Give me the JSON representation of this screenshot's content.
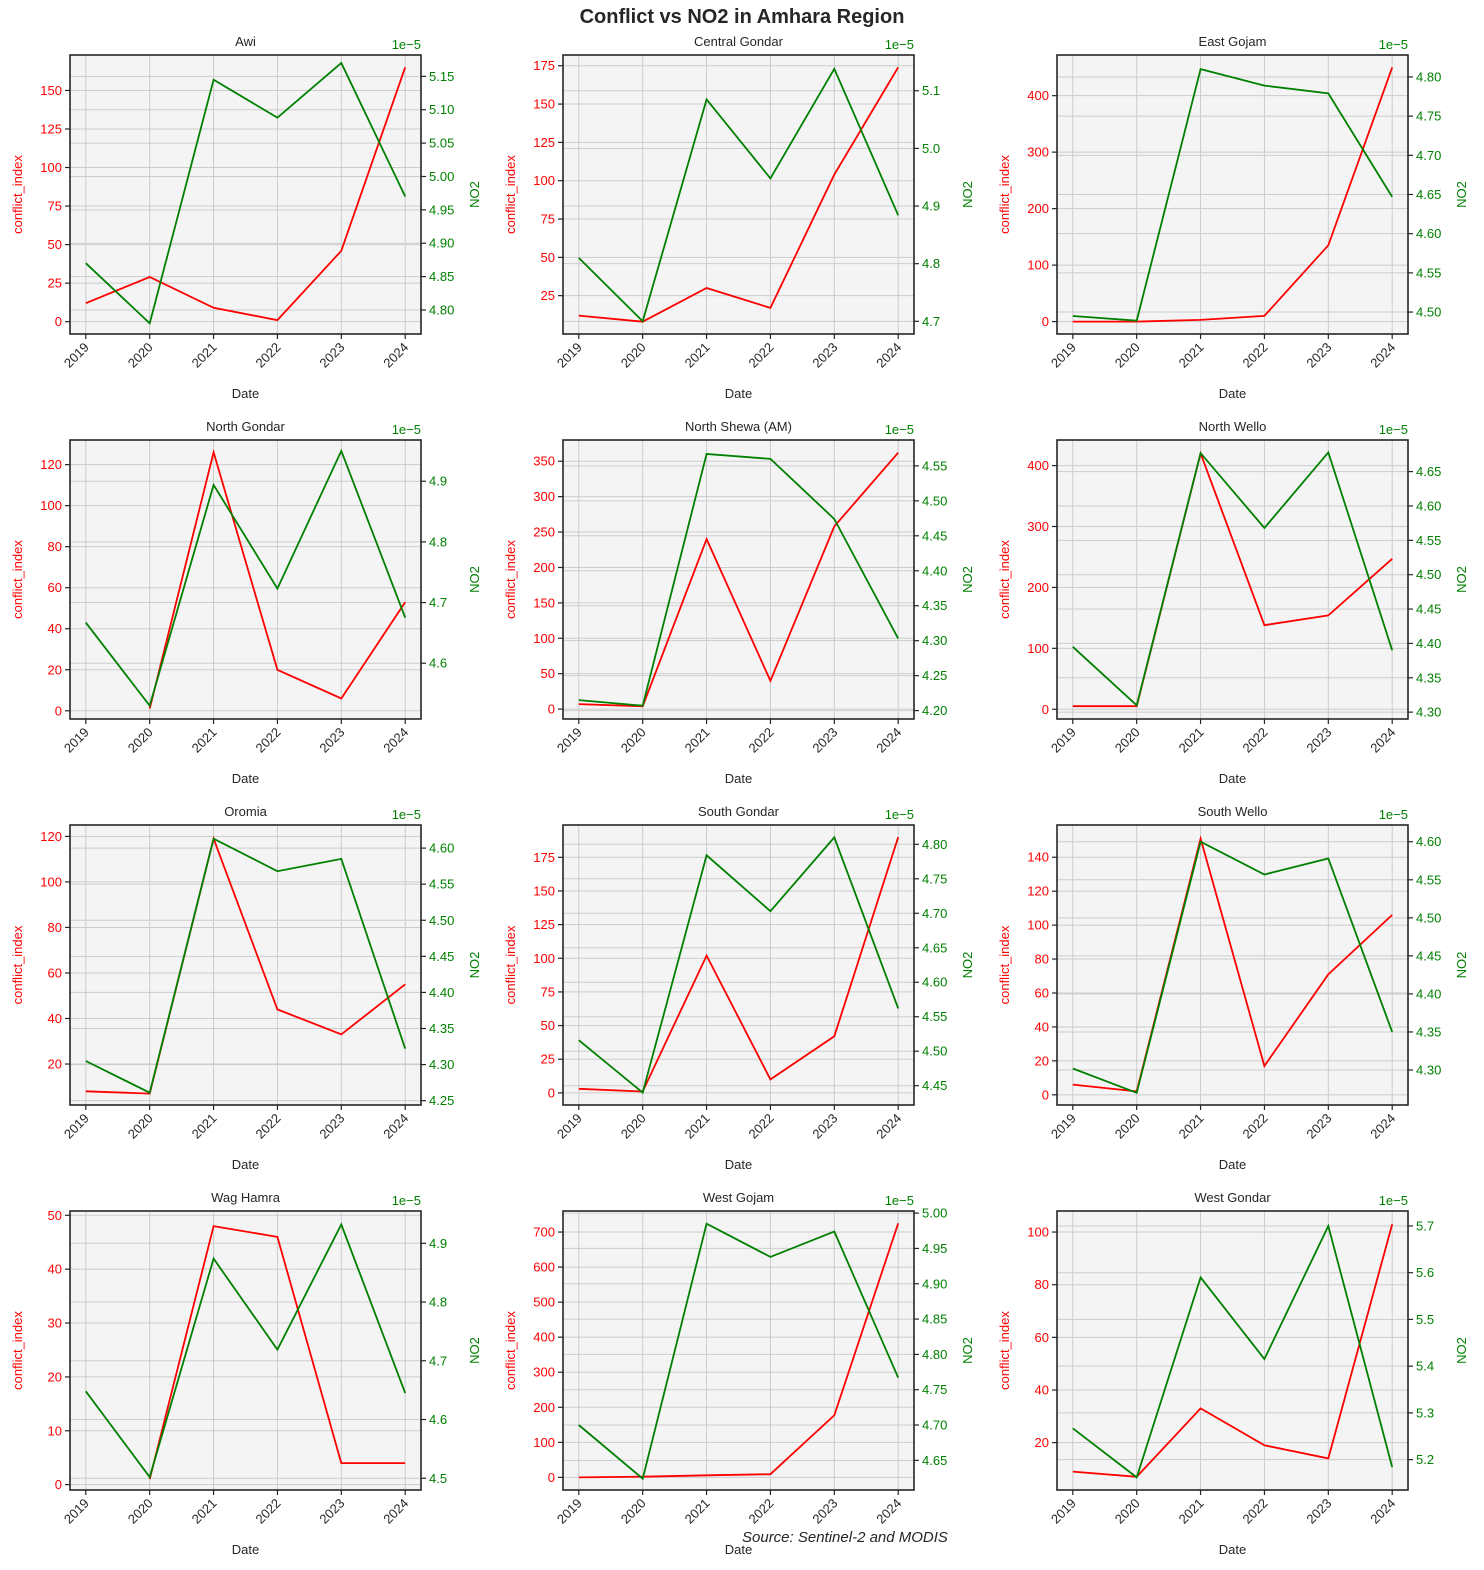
{
  "figure": {
    "title": "Conflict vs NO2 in Amhara Region",
    "source": "Source: Sentinel-2 and MODIS",
    "colors": {
      "conflict": "#ff0000",
      "no2": "#008000",
      "axes_bg": "#f4f4f4",
      "grid": "#cccccc",
      "spine": "#262626",
      "text": "#262626"
    }
  },
  "chart_data": [
    {
      "type": "line",
      "title": "Awi",
      "xlabel": "Date",
      "ylabel": "conflict_index",
      "y2label": "NO2",
      "y2_offset": "1e−5",
      "categories": [
        "2019",
        "2020",
        "2021",
        "2022",
        "2023",
        "2024"
      ],
      "ylim": [
        -8,
        173
      ],
      "yticks": [
        0,
        25,
        50,
        75,
        100,
        125,
        150
      ],
      "y2lim": [
        4.764,
        5.182
      ],
      "y2ticks": [
        4.8,
        4.85,
        4.9,
        4.95,
        5.0,
        5.05,
        5.1,
        5.15
      ],
      "y2dec": 2,
      "series": [
        {
          "name": "conflict_index",
          "axis": "left",
          "values": [
            12,
            29,
            9,
            1,
            46,
            165
          ]
        },
        {
          "name": "NO2",
          "axis": "right",
          "scale": "1e-5",
          "values": [
            4.87,
            4.78,
            5.145,
            5.088,
            5.17,
            4.97
          ]
        }
      ]
    },
    {
      "type": "line",
      "title": "Central Gondar",
      "xlabel": "Date",
      "ylabel": "conflict_index",
      "y2label": "NO2",
      "y2_offset": "1e−5",
      "categories": [
        "2019",
        "2020",
        "2021",
        "2022",
        "2023",
        "2024"
      ],
      "ylim": [
        0,
        182
      ],
      "yticks": [
        25,
        50,
        75,
        100,
        125,
        150,
        175
      ],
      "y2lim": [
        4.678,
        5.162
      ],
      "y2ticks": [
        4.7,
        4.8,
        4.9,
        5.0,
        5.1
      ],
      "y2dec": 1,
      "series": [
        {
          "name": "conflict_index",
          "axis": "left",
          "values": [
            12,
            8,
            30,
            17,
            104,
            174
          ]
        },
        {
          "name": "NO2",
          "axis": "right",
          "scale": "1e-5",
          "values": [
            4.81,
            4.7,
            5.085,
            4.948,
            5.138,
            4.884
          ]
        }
      ]
    },
    {
      "type": "line",
      "title": "East Gojam",
      "xlabel": "Date",
      "ylabel": "conflict_index",
      "y2label": "NO2",
      "y2_offset": "1e−5",
      "categories": [
        "2019",
        "2020",
        "2021",
        "2022",
        "2023",
        "2024"
      ],
      "ylim": [
        -22,
        472
      ],
      "yticks": [
        0,
        100,
        200,
        300,
        400
      ],
      "y2lim": [
        4.472,
        4.828
      ],
      "y2ticks": [
        4.5,
        4.55,
        4.6,
        4.65,
        4.7,
        4.75,
        4.8
      ],
      "y2dec": 2,
      "series": [
        {
          "name": "conflict_index",
          "axis": "left",
          "values": [
            0,
            0,
            3,
            10,
            135,
            450
          ]
        },
        {
          "name": "NO2",
          "axis": "right",
          "scale": "1e-5",
          "values": [
            4.495,
            4.489,
            4.81,
            4.789,
            4.779,
            4.647
          ]
        }
      ]
    },
    {
      "type": "line",
      "title": "North Gondar",
      "xlabel": "Date",
      "ylabel": "conflict_index",
      "y2label": "NO2",
      "y2_offset": "1e−5",
      "categories": [
        "2019",
        "2020",
        "2021",
        "2022",
        "2023",
        "2024"
      ],
      "ylim": [
        -4,
        132
      ],
      "yticks": [
        0,
        20,
        40,
        60,
        80,
        100,
        120
      ],
      "y2lim": [
        4.508,
        4.968
      ],
      "y2ticks": [
        4.6,
        4.7,
        4.8,
        4.9
      ],
      "y2dec": 1,
      "series": [
        {
          "name": "conflict_index",
          "axis": "left",
          "values": [
            null,
            1,
            126,
            20,
            6,
            53
          ]
        },
        {
          "name": "NO2",
          "axis": "right",
          "scale": "1e-5",
          "values": [
            4.667,
            4.53,
            4.894,
            4.723,
            4.95,
            4.675
          ]
        }
      ]
    },
    {
      "type": "line",
      "title": "North Shewa (AM)",
      "xlabel": "Date",
      "ylabel": "conflict_index",
      "y2label": "NO2",
      "y2_offset": "1e−5",
      "categories": [
        "2019",
        "2020",
        "2021",
        "2022",
        "2023",
        "2024"
      ],
      "ylim": [
        -14,
        380
      ],
      "yticks": [
        0,
        50,
        100,
        150,
        200,
        250,
        300,
        350
      ],
      "y2lim": [
        4.188,
        4.587
      ],
      "y2ticks": [
        4.2,
        4.25,
        4.3,
        4.35,
        4.4,
        4.45,
        4.5,
        4.55
      ],
      "y2dec": 2,
      "series": [
        {
          "name": "conflict_index",
          "axis": "left",
          "values": [
            7,
            4,
            240,
            40,
            258,
            362
          ]
        },
        {
          "name": "NO2",
          "axis": "right",
          "scale": "1e-5",
          "values": [
            4.215,
            4.207,
            4.567,
            4.56,
            4.474,
            4.303
          ]
        }
      ]
    },
    {
      "type": "line",
      "title": "North Wello",
      "xlabel": "Date",
      "ylabel": "conflict_index",
      "y2label": "NO2",
      "y2_offset": "1e−5",
      "categories": [
        "2019",
        "2020",
        "2021",
        "2022",
        "2023",
        "2024"
      ],
      "ylim": [
        -16,
        442
      ],
      "yticks": [
        0,
        100,
        200,
        300,
        400
      ],
      "y2lim": [
        4.29,
        4.696
      ],
      "y2ticks": [
        4.3,
        4.35,
        4.4,
        4.45,
        4.5,
        4.55,
        4.6,
        4.65
      ],
      "y2dec": 2,
      "series": [
        {
          "name": "conflict_index",
          "axis": "left",
          "values": [
            5,
            5,
            420,
            138,
            154,
            247
          ]
        },
        {
          "name": "NO2",
          "axis": "right",
          "scale": "1e-5",
          "values": [
            4.395,
            4.31,
            4.677,
            4.568,
            4.678,
            4.39
          ]
        }
      ]
    },
    {
      "type": "line",
      "title": "Oromia",
      "xlabel": "Date",
      "ylabel": "conflict_index",
      "y2label": "NO2",
      "y2_offset": "1e−5",
      "categories": [
        "2019",
        "2020",
        "2021",
        "2022",
        "2023",
        "2024"
      ],
      "ylim": [
        2,
        125
      ],
      "yticks": [
        20,
        40,
        60,
        80,
        100,
        120
      ],
      "y2lim": [
        4.244,
        4.632
      ],
      "y2ticks": [
        4.25,
        4.3,
        4.35,
        4.4,
        4.45,
        4.5,
        4.55,
        4.6
      ],
      "y2dec": 2,
      "series": [
        {
          "name": "conflict_index",
          "axis": "left",
          "values": [
            8,
            7,
            119,
            44,
            33,
            55
          ]
        },
        {
          "name": "NO2",
          "axis": "right",
          "scale": "1e-5",
          "values": [
            4.305,
            4.261,
            4.613,
            4.568,
            4.585,
            4.322
          ]
        }
      ]
    },
    {
      "type": "line",
      "title": "South Gondar",
      "xlabel": "Date",
      "ylabel": "conflict_index",
      "y2label": "NO2",
      "y2_offset": "1e−5",
      "categories": [
        "2019",
        "2020",
        "2021",
        "2022",
        "2023",
        "2024"
      ],
      "ylim": [
        -9,
        199
      ],
      "yticks": [
        0,
        25,
        50,
        75,
        100,
        125,
        150,
        175
      ],
      "y2lim": [
        4.422,
        4.828
      ],
      "y2ticks": [
        4.45,
        4.5,
        4.55,
        4.6,
        4.65,
        4.7,
        4.75,
        4.8
      ],
      "y2dec": 2,
      "series": [
        {
          "name": "conflict_index",
          "axis": "left",
          "values": [
            3,
            1,
            102,
            10,
            42,
            190
          ]
        },
        {
          "name": "NO2",
          "axis": "right",
          "scale": "1e-5",
          "values": [
            4.516,
            4.44,
            4.784,
            4.703,
            4.81,
            4.562
          ]
        }
      ]
    },
    {
      "type": "line",
      "title": "South Wello",
      "xlabel": "Date",
      "ylabel": "conflict_index",
      "y2label": "NO2",
      "y2_offset": "1e−5",
      "categories": [
        "2019",
        "2020",
        "2021",
        "2022",
        "2023",
        "2024"
      ],
      "ylim": [
        -6,
        159
      ],
      "yticks": [
        0,
        20,
        40,
        60,
        80,
        100,
        120,
        140
      ],
      "y2lim": [
        4.254,
        4.622
      ],
      "y2ticks": [
        4.3,
        4.35,
        4.4,
        4.45,
        4.5,
        4.55,
        4.6
      ],
      "y2dec": 2,
      "series": [
        {
          "name": "conflict_index",
          "axis": "left",
          "values": [
            6,
            2,
            151,
            17,
            71,
            106
          ]
        },
        {
          "name": "NO2",
          "axis": "right",
          "scale": "1e-5",
          "values": [
            4.302,
            4.27,
            4.6,
            4.557,
            4.578,
            4.35
          ]
        }
      ]
    },
    {
      "type": "line",
      "title": "Wag Hamra",
      "xlabel": "Date",
      "ylabel": "conflict_index",
      "y2label": "NO2",
      "y2_offset": "1e−5",
      "categories": [
        "2019",
        "2020",
        "2021",
        "2022",
        "2023",
        "2024"
      ],
      "ylim": [
        -1,
        50.8
      ],
      "yticks": [
        0,
        10,
        20,
        30,
        40,
        50
      ],
      "y2lim": [
        4.48,
        4.955
      ],
      "y2ticks": [
        4.5,
        4.6,
        4.7,
        4.8,
        4.9
      ],
      "y2dec": 1,
      "series": [
        {
          "name": "conflict_index",
          "axis": "left",
          "values": [
            null,
            1,
            48,
            46,
            4,
            4
          ]
        },
        {
          "name": "NO2",
          "axis": "right",
          "scale": "1e-5",
          "values": [
            4.648,
            4.502,
            4.874,
            4.719,
            4.932,
            4.645
          ]
        }
      ]
    },
    {
      "type": "line",
      "title": "West Gojam",
      "xlabel": "Date",
      "ylabel": "conflict_index",
      "y2label": "NO2",
      "y2_offset": "1e−5",
      "categories": [
        "2019",
        "2020",
        "2021",
        "2022",
        "2023",
        "2024"
      ],
      "ylim": [
        -36,
        760
      ],
      "yticks": [
        0,
        100,
        200,
        300,
        400,
        500,
        600,
        700
      ],
      "y2lim": [
        4.608,
        5.003
      ],
      "y2ticks": [
        4.65,
        4.7,
        4.75,
        4.8,
        4.85,
        4.9,
        4.95,
        5.0
      ],
      "y2dec": 2,
      "series": [
        {
          "name": "conflict_index",
          "axis": "left",
          "values": [
            0,
            2,
            6,
            9,
            177,
            725
          ]
        },
        {
          "name": "NO2",
          "axis": "right",
          "scale": "1e-5",
          "values": [
            4.7,
            4.624,
            4.985,
            4.938,
            4.974,
            4.767
          ]
        }
      ]
    },
    {
      "type": "line",
      "title": "West Gondar",
      "xlabel": "Date",
      "ylabel": "conflict_index",
      "y2label": "NO2",
      "y2_offset": "1e−5",
      "categories": [
        "2019",
        "2020",
        "2021",
        "2022",
        "2023",
        "2024"
      ],
      "ylim": [
        2,
        108
      ],
      "yticks": [
        20,
        40,
        60,
        80,
        100
      ],
      "y2lim": [
        5.135,
        5.732
      ],
      "y2ticks": [
        5.2,
        5.3,
        5.4,
        5.5,
        5.6,
        5.7
      ],
      "y2dec": 1,
      "series": [
        {
          "name": "conflict_index",
          "axis": "left",
          "values": [
            9,
            7,
            33,
            19,
            14,
            103
          ]
        },
        {
          "name": "NO2",
          "axis": "right",
          "scale": "1e-5",
          "values": [
            5.267,
            5.162,
            5.59,
            5.415,
            5.7,
            5.184
          ]
        }
      ]
    }
  ]
}
